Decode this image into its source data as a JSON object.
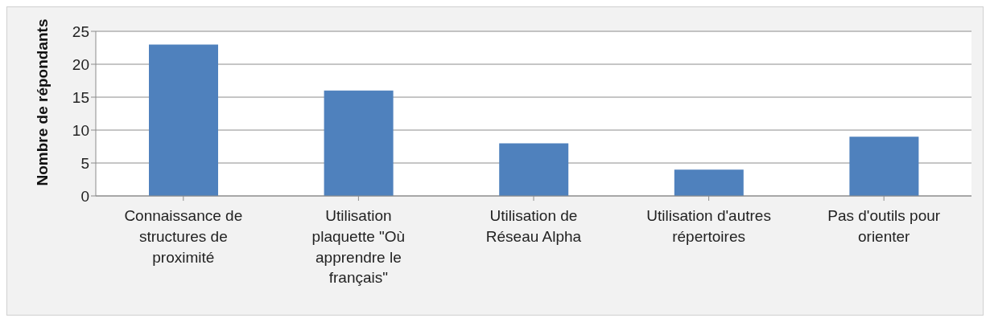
{
  "chart_data": {
    "type": "bar",
    "ylabel": "Nombre de répondants",
    "categories": [
      "Connaissance de structures de proximité",
      "Utilisation plaquette \"Où apprendre le français\"",
      "Utilisation de Réseau Alpha",
      "Utilisation d'autres répertoires",
      "Pas d'outils pour orienter"
    ],
    "values": [
      23,
      16,
      8,
      4,
      9
    ],
    "color": "#4f81bd",
    "ylim": [
      0,
      25
    ],
    "yticks": [
      0,
      5,
      10,
      15,
      20,
      25
    ],
    "grid": "y",
    "legend": false
  }
}
